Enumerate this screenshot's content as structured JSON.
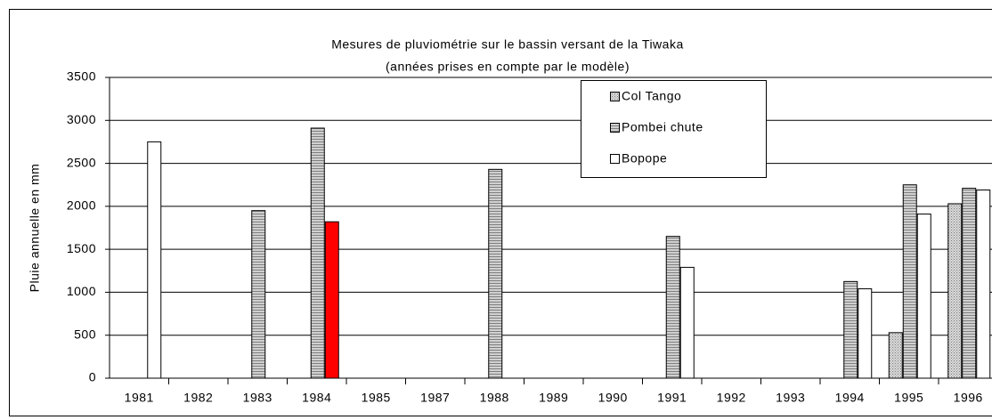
{
  "chart_data": {
    "type": "bar",
    "title": "Mesures de pluviométrie sur le bassin versant de la Tiwaka",
    "subtitle": "(années prises en compte par le modèle)",
    "y_label": "Pluie annuelle en mm",
    "categories": [
      "1981",
      "1982",
      "1983",
      "1984",
      "1985",
      "1987",
      "1988",
      "1989",
      "1990",
      "1991",
      "1992",
      "1993",
      "1994",
      "1995",
      "1996"
    ],
    "series": [
      {
        "name": "Col Tango",
        "color": "#c0c0c0",
        "pattern": "dots",
        "values": [
          null,
          null,
          null,
          null,
          null,
          null,
          null,
          null,
          null,
          null,
          null,
          null,
          null,
          530,
          2030
        ]
      },
      {
        "name": "Pombei chute",
        "color": "#c0c0c0",
        "pattern": "stripes",
        "values": [
          null,
          null,
          1950,
          2910,
          null,
          null,
          2430,
          null,
          null,
          1650,
          null,
          null,
          1125,
          2250,
          2210
        ]
      },
      {
        "name": "Bopope",
        "color": "#ffffff",
        "pattern": "solid",
        "colors": [
          "#ffffff",
          "#ffffff",
          "#ffffff",
          "#ff0000",
          "#ffffff",
          "#ffffff",
          "#ffffff",
          "#ffffff",
          "#ffffff",
          "#ffffff",
          "#ffffff",
          "#ffffff",
          "#ffffff",
          "#ffffff",
          "#ffffff"
        ],
        "values": [
          2750,
          null,
          null,
          1820,
          null,
          null,
          null,
          null,
          null,
          1290,
          null,
          null,
          1040,
          1910,
          2190
        ]
      }
    ],
    "ylim": [
      0,
      3500
    ],
    "yticks": [
      0,
      500,
      1000,
      1500,
      2000,
      2500,
      3000,
      3500
    ],
    "grid": true,
    "legend": "top-right"
  }
}
